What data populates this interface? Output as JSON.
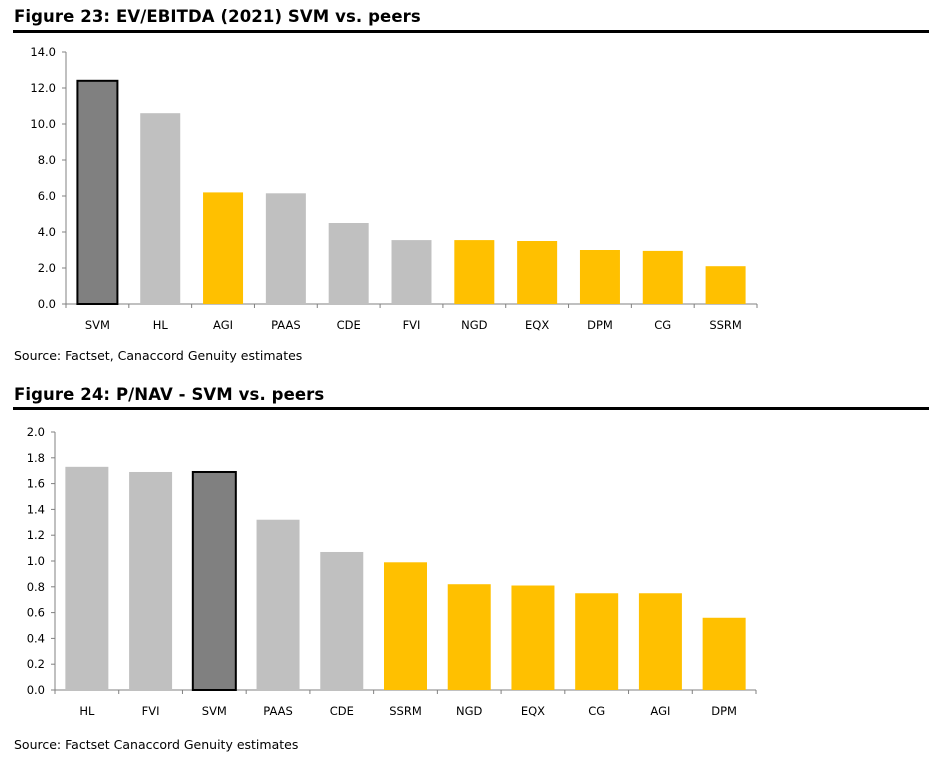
{
  "figure1": {
    "title": "Figure 23: EV/EBITDA (2021) SVM vs. peers",
    "source": "Source: Factset, Canaccord Genuity estimates"
  },
  "figure2": {
    "title": "Figure 24: P/NAV - SVM vs. peers",
    "source": "Source: Factset Canaccord Genuity estimates"
  },
  "colors": {
    "highlight": "#808080",
    "peer_grey": "#c0c0c0",
    "peer_gold": "#ffc000",
    "axis": "#808080"
  },
  "chart_data": [
    {
      "type": "bar",
      "title": "Figure 23: EV/EBITDA (2021) SVM vs. peers",
      "categories": [
        "SVM",
        "HL",
        "AGI",
        "PAAS",
        "CDE",
        "FVI",
        "NGD",
        "EQX",
        "DPM",
        "CG",
        "SSRM"
      ],
      "values": [
        12.4,
        10.6,
        6.2,
        6.15,
        4.5,
        3.55,
        3.55,
        3.5,
        3.0,
        2.95,
        2.1
      ],
      "bar_colors": [
        "highlight",
        "peer_grey",
        "peer_gold",
        "peer_grey",
        "peer_grey",
        "peer_grey",
        "peer_gold",
        "peer_gold",
        "peer_gold",
        "peer_gold",
        "peer_gold"
      ],
      "yticks": [
        "0.0",
        "2.0",
        "4.0",
        "6.0",
        "8.0",
        "10.0",
        "12.0",
        "14.0"
      ],
      "ylim": [
        0,
        14
      ],
      "grid": false
    },
    {
      "type": "bar",
      "title": "Figure 24: P/NAV - SVM vs. peers",
      "categories": [
        "HL",
        "FVI",
        "SVM",
        "PAAS",
        "CDE",
        "SSRM",
        "NGD",
        "EQX",
        "CG",
        "AGI",
        "DPM"
      ],
      "values": [
        1.73,
        1.69,
        1.69,
        1.32,
        1.07,
        0.99,
        0.82,
        0.81,
        0.75,
        0.75,
        0.56
      ],
      "bar_colors": [
        "peer_grey",
        "peer_grey",
        "highlight",
        "peer_grey",
        "peer_grey",
        "peer_gold",
        "peer_gold",
        "peer_gold",
        "peer_gold",
        "peer_gold",
        "peer_gold"
      ],
      "yticks": [
        "0.0",
        "0.2",
        "0.4",
        "0.6",
        "0.8",
        "1.0",
        "1.2",
        "1.4",
        "1.6",
        "1.8",
        "2.0"
      ],
      "ylim": [
        0,
        2.0
      ],
      "grid": false
    }
  ]
}
